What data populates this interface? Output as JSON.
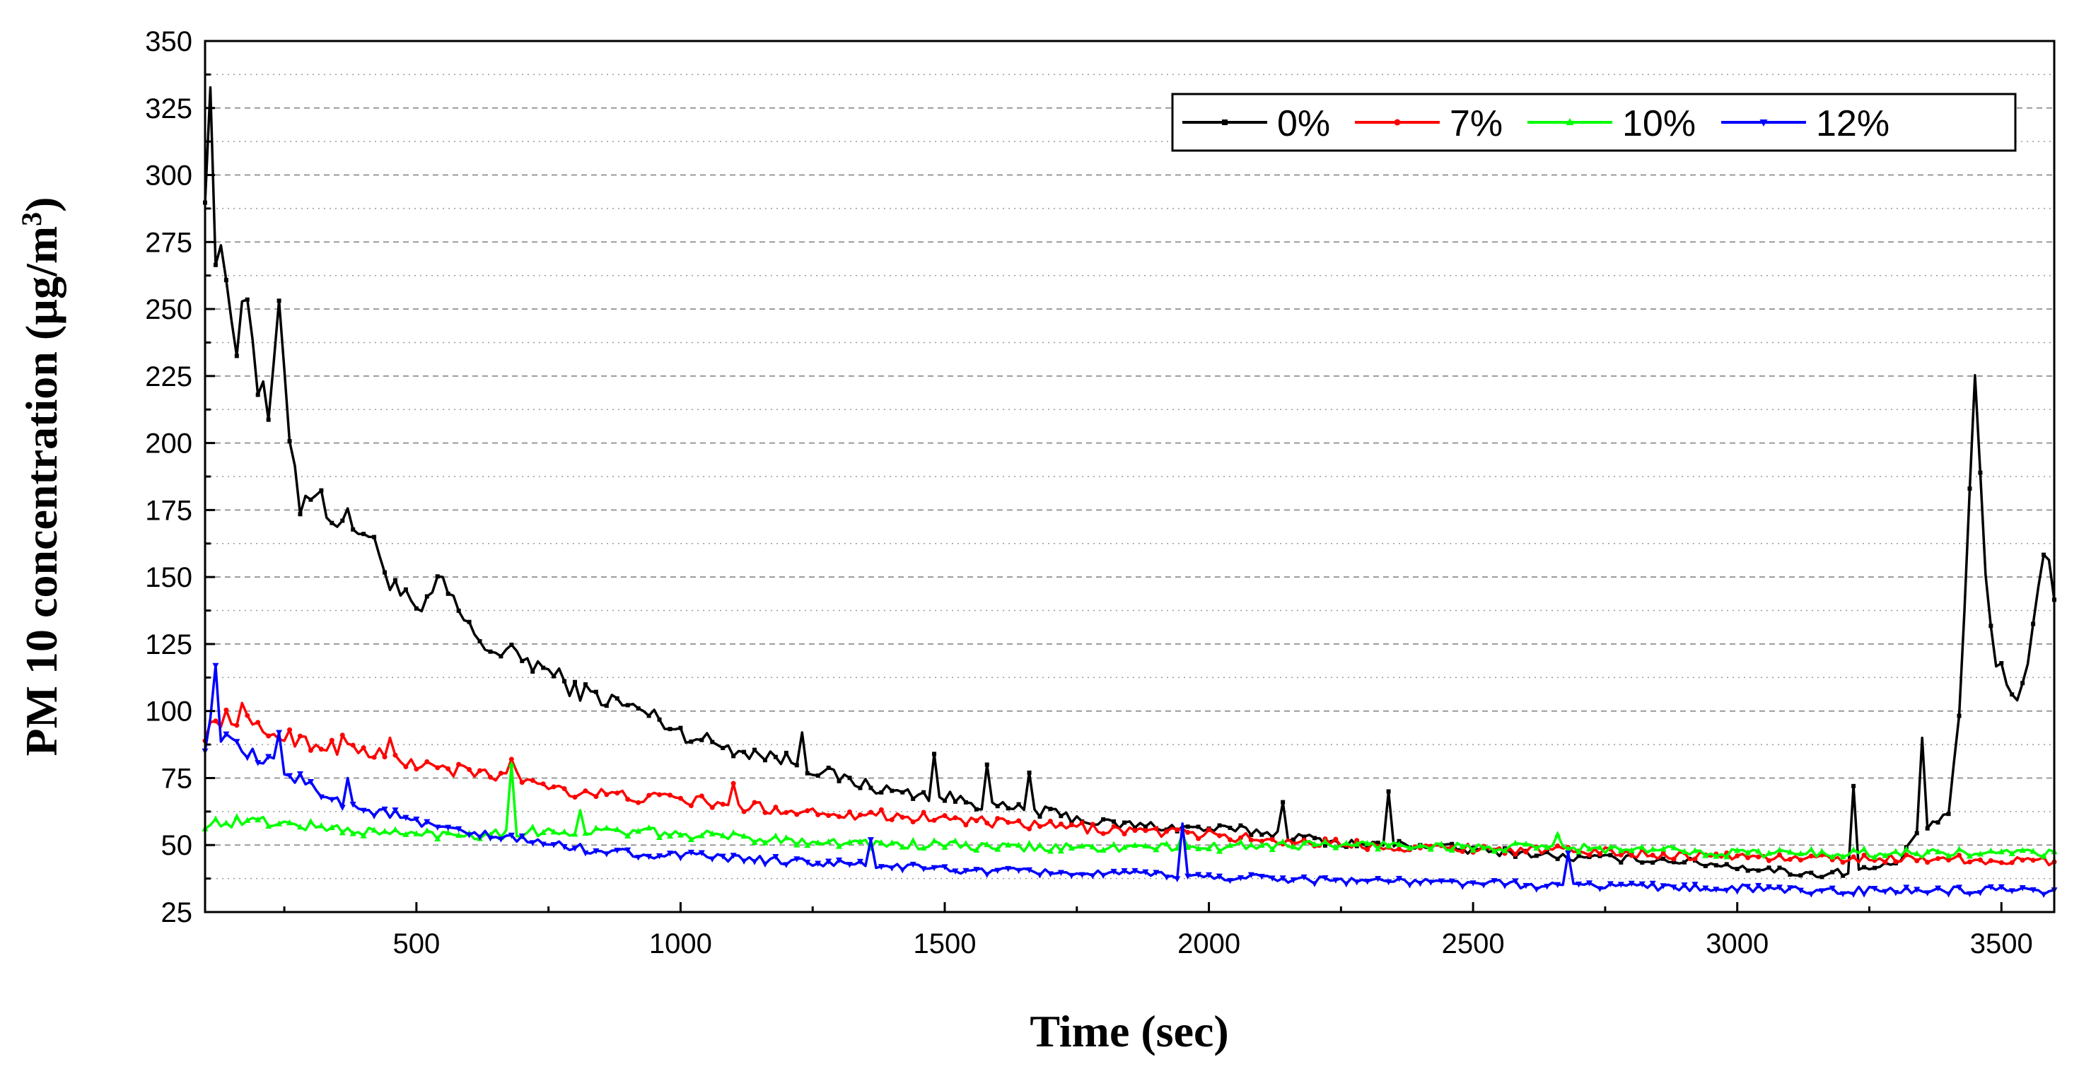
{
  "chart_data": {
    "type": "line",
    "title": "",
    "xlabel": "Time (sec)",
    "ylabel_main": "PM 10 concentration (µg/m",
    "ylabel_sup": "3",
    "ylabel_close": ")",
    "xlim": [
      100,
      3600
    ],
    "ylim": [
      25,
      350
    ],
    "xticks": [
      500,
      1000,
      1500,
      2000,
      2500,
      3000,
      3500
    ],
    "yticks": [
      25,
      50,
      75,
      100,
      125,
      150,
      175,
      200,
      225,
      250,
      275,
      300,
      325,
      350
    ],
    "grid": true,
    "legend_position": "top-right",
    "sample_step_sec": 10,
    "series": [
      {
        "name": "0%",
        "color": "#000000",
        "marker": "square",
        "keypoints": [
          [
            100,
            300
          ],
          [
            110,
            337
          ],
          [
            120,
            268
          ],
          [
            140,
            262
          ],
          [
            160,
            240
          ],
          [
            180,
            258
          ],
          [
            200,
            222
          ],
          [
            220,
            210
          ],
          [
            240,
            245
          ],
          [
            260,
            205
          ],
          [
            280,
            178
          ],
          [
            300,
            183
          ],
          [
            350,
            172
          ],
          [
            400,
            168
          ],
          [
            450,
            150
          ],
          [
            500,
            135
          ],
          [
            550,
            148
          ],
          [
            600,
            130
          ],
          [
            650,
            122
          ],
          [
            700,
            120
          ],
          [
            750,
            115
          ],
          [
            800,
            108
          ],
          [
            850,
            105
          ],
          [
            900,
            102
          ],
          [
            950,
            98
          ],
          [
            1000,
            92
          ],
          [
            1100,
            86
          ],
          [
            1200,
            82
          ],
          [
            1300,
            75
          ],
          [
            1400,
            70
          ],
          [
            1500,
            68
          ],
          [
            1600,
            64
          ],
          [
            1700,
            62
          ],
          [
            1800,
            58
          ],
          [
            1900,
            57
          ],
          [
            2000,
            56
          ],
          [
            2100,
            55
          ],
          [
            2200,
            52
          ],
          [
            2300,
            50
          ],
          [
            2400,
            50
          ],
          [
            2500,
            48
          ],
          [
            2600,
            47
          ],
          [
            2700,
            45
          ],
          [
            2800,
            45
          ],
          [
            2900,
            44
          ],
          [
            3000,
            42
          ],
          [
            3100,
            40
          ],
          [
            3150,
            39
          ],
          [
            3200,
            40
          ],
          [
            3250,
            41
          ],
          [
            3300,
            43
          ],
          [
            3350,
            55
          ],
          [
            3400,
            62
          ],
          [
            3420,
            95
          ],
          [
            3450,
            224
          ],
          [
            3470,
            150
          ],
          [
            3490,
            118
          ],
          [
            3510,
            110
          ],
          [
            3530,
            107
          ],
          [
            3550,
            115
          ],
          [
            3570,
            150
          ],
          [
            3590,
            160
          ],
          [
            3600,
            145
          ]
        ],
        "spikes": [
          [
            1230,
            92
          ],
          [
            1480,
            84
          ],
          [
            1580,
            80
          ],
          [
            1660,
            77
          ],
          [
            2140,
            66
          ],
          [
            2340,
            70
          ],
          [
            3220,
            72
          ],
          [
            3350,
            90
          ],
          [
            3440,
            183
          ]
        ]
      },
      {
        "name": "7%",
        "color": "#ff0000",
        "marker": "circle",
        "keypoints": [
          [
            100,
            92
          ],
          [
            130,
            97
          ],
          [
            160,
            98
          ],
          [
            200,
            93
          ],
          [
            250,
            91
          ],
          [
            300,
            88
          ],
          [
            400,
            85
          ],
          [
            500,
            80
          ],
          [
            600,
            77
          ],
          [
            700,
            75
          ],
          [
            800,
            70
          ],
          [
            900,
            68
          ],
          [
            1000,
            67
          ],
          [
            1100,
            65
          ],
          [
            1200,
            63
          ],
          [
            1300,
            62
          ],
          [
            1400,
            61
          ],
          [
            1500,
            60
          ],
          [
            1600,
            58
          ],
          [
            1700,
            57
          ],
          [
            1800,
            56
          ],
          [
            1900,
            55
          ],
          [
            2000,
            54
          ],
          [
            2100,
            52
          ],
          [
            2200,
            51
          ],
          [
            2300,
            50
          ],
          [
            2400,
            49
          ],
          [
            2500,
            49
          ],
          [
            2600,
            48
          ],
          [
            2700,
            48
          ],
          [
            2800,
            47
          ],
          [
            2900,
            46
          ],
          [
            3000,
            46
          ],
          [
            3100,
            45
          ],
          [
            3200,
            45
          ],
          [
            3300,
            45
          ],
          [
            3400,
            45
          ],
          [
            3500,
            44
          ],
          [
            3600,
            44
          ]
        ],
        "spikes": [
          [
            170,
            103
          ],
          [
            360,
            91
          ],
          [
            450,
            90
          ],
          [
            680,
            82
          ],
          [
            1100,
            73
          ]
        ]
      },
      {
        "name": "10%",
        "color": "#00ff00",
        "marker": "triangle-up",
        "keypoints": [
          [
            100,
            58
          ],
          [
            200,
            59
          ],
          [
            300,
            57
          ],
          [
            400,
            55
          ],
          [
            500,
            54
          ],
          [
            600,
            54
          ],
          [
            700,
            55
          ],
          [
            800,
            55
          ],
          [
            900,
            55
          ],
          [
            1000,
            54
          ],
          [
            1100,
            53
          ],
          [
            1200,
            52
          ],
          [
            1300,
            51
          ],
          [
            1400,
            50
          ],
          [
            1500,
            50
          ],
          [
            1600,
            49
          ],
          [
            1700,
            49
          ],
          [
            1800,
            49
          ],
          [
            1900,
            49
          ],
          [
            2000,
            49
          ],
          [
            2100,
            50
          ],
          [
            2200,
            50
          ],
          [
            2300,
            50
          ],
          [
            2400,
            50
          ],
          [
            2500,
            49
          ],
          [
            2600,
            49
          ],
          [
            2700,
            49
          ],
          [
            2800,
            48
          ],
          [
            2900,
            48
          ],
          [
            3000,
            47
          ],
          [
            3100,
            47
          ],
          [
            3200,
            47
          ],
          [
            3300,
            47
          ],
          [
            3400,
            47
          ],
          [
            3500,
            47
          ],
          [
            3600,
            47
          ]
        ],
        "spikes": [
          [
            680,
            80
          ],
          [
            810,
            63
          ],
          [
            1950,
            54
          ],
          [
            2660,
            54
          ]
        ]
      },
      {
        "name": "12%",
        "color": "#0000ff",
        "marker": "triangle-down",
        "keypoints": [
          [
            100,
            88
          ],
          [
            110,
            95
          ],
          [
            130,
            90
          ],
          [
            150,
            87
          ],
          [
            200,
            82
          ],
          [
            250,
            78
          ],
          [
            300,
            72
          ],
          [
            350,
            67
          ],
          [
            400,
            63
          ],
          [
            450,
            62
          ],
          [
            500,
            58
          ],
          [
            600,
            54
          ],
          [
            700,
            52
          ],
          [
            800,
            49
          ],
          [
            900,
            47
          ],
          [
            1000,
            46
          ],
          [
            1100,
            45
          ],
          [
            1200,
            44
          ],
          [
            1300,
            43
          ],
          [
            1400,
            42
          ],
          [
            1500,
            41
          ],
          [
            1600,
            40
          ],
          [
            1700,
            40
          ],
          [
            1800,
            39
          ],
          [
            1900,
            39
          ],
          [
            2000,
            38
          ],
          [
            2100,
            38
          ],
          [
            2200,
            37
          ],
          [
            2300,
            37
          ],
          [
            2400,
            36
          ],
          [
            2500,
            36
          ],
          [
            2600,
            35
          ],
          [
            2700,
            35
          ],
          [
            2800,
            35
          ],
          [
            2900,
            34
          ],
          [
            3000,
            34
          ],
          [
            3100,
            33
          ],
          [
            3200,
            33
          ],
          [
            3300,
            33
          ],
          [
            3400,
            33
          ],
          [
            3500,
            33
          ],
          [
            3600,
            32
          ]
        ],
        "spikes": [
          [
            120,
            117
          ],
          [
            240,
            92
          ],
          [
            370,
            75
          ],
          [
            1360,
            52
          ],
          [
            1950,
            58
          ],
          [
            2680,
            47
          ]
        ]
      }
    ]
  }
}
